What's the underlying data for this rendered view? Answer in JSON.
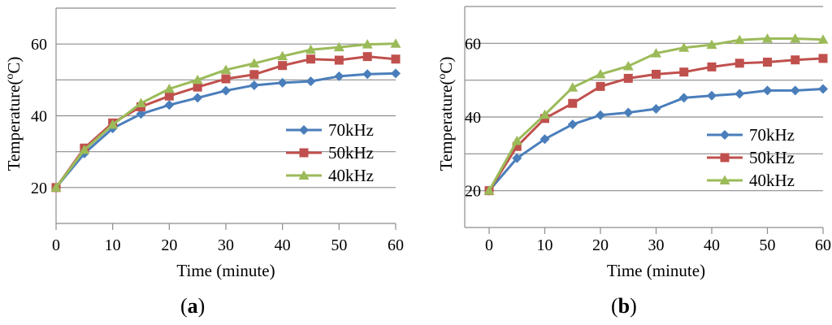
{
  "chart_data": [
    {
      "type": "line",
      "panel": "a",
      "xlabel": "Time (minute)",
      "ylabel": "Temperature(oC)",
      "ylabel_parts": {
        "pre": "Temperature(",
        "sup": "o",
        "post": "C)"
      },
      "xlim": [
        0,
        60
      ],
      "ylim": [
        10,
        70
      ],
      "xticks": [
        0,
        10,
        20,
        30,
        40,
        50,
        60
      ],
      "yticks": [
        20,
        40,
        60
      ],
      "gridlines_y": [
        20,
        30,
        40,
        50,
        60,
        70
      ],
      "x": [
        0,
        5,
        10,
        15,
        20,
        25,
        30,
        35,
        40,
        45,
        50,
        55,
        60
      ],
      "series": [
        {
          "name": "70kHz",
          "color": "#4a7ebb",
          "marker": "diamond",
          "values": [
            20,
            29.5,
            36.5,
            40.5,
            43,
            45,
            47,
            48.5,
            49.2,
            49.6,
            51,
            51.6,
            51.8
          ]
        },
        {
          "name": "50kHz",
          "color": "#c0504d",
          "marker": "square",
          "values": [
            20,
            31,
            38,
            42.5,
            45.5,
            48,
            50.3,
            51.5,
            54,
            55.8,
            55.5,
            56.5,
            55.8
          ]
        },
        {
          "name": "40kHz",
          "color": "#9bbb59",
          "marker": "triangle",
          "values": [
            20,
            30.5,
            37.5,
            43.5,
            47.5,
            50,
            52.8,
            54.6,
            56.6,
            58.4,
            59.1,
            59.9,
            60.1
          ]
        }
      ],
      "legend": "center-right"
    },
    {
      "type": "line",
      "panel": "b",
      "xlabel": "Time (minute)",
      "ylabel": "Temperature(oC)",
      "ylabel_parts": {
        "pre": "Temperature(",
        "sup": "o",
        "post": "C)"
      },
      "xlim": [
        0,
        60
      ],
      "ylim": [
        10,
        70
      ],
      "xticks": [
        0,
        10,
        20,
        30,
        40,
        50,
        60
      ],
      "yticks": [
        20,
        40,
        60
      ],
      "gridlines_y": [
        20,
        30,
        40,
        50,
        60,
        70
      ],
      "x": [
        0,
        5,
        10,
        15,
        20,
        25,
        30,
        35,
        40,
        45,
        50,
        55,
        60
      ],
      "series": [
        {
          "name": "70kHz",
          "color": "#4a7ebb",
          "marker": "diamond",
          "values": [
            20,
            28.8,
            34,
            38,
            40.5,
            41.2,
            42.2,
            45.2,
            45.8,
            46.3,
            47.2,
            47.2,
            47.6
          ]
        },
        {
          "name": "50kHz",
          "color": "#c0504d",
          "marker": "square",
          "values": [
            20,
            32,
            39.6,
            43.7,
            48.3,
            50.5,
            51.6,
            52.2,
            53.6,
            54.6,
            54.9,
            55.5,
            55.9
          ]
        },
        {
          "name": "40kHz",
          "color": "#9bbb59",
          "marker": "triangle",
          "values": [
            20,
            33.5,
            40.6,
            48,
            51.6,
            53.8,
            57.3,
            58.8,
            59.6,
            60.9,
            61.3,
            61.3,
            61
          ]
        }
      ],
      "legend": "center-right"
    }
  ],
  "labels": {
    "a": "a",
    "b": "b"
  }
}
